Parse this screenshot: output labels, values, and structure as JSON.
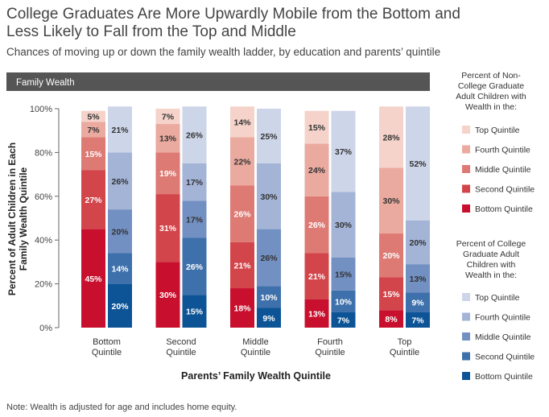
{
  "title_line1": "College Graduates Are More Upwardly Mobile from the Bottom and",
  "title_line2": "Less Likely to Fall from the Top and Middle",
  "subtitle": "Chances of moving up or down the family wealth ladder, by education and parents’ quintile",
  "band_label": "Family Wealth",
  "note": "Note: Wealth is adjusted for age and includes home equity.",
  "legend": {
    "noncollege_heading": [
      "Percent of Non-",
      "College Graduate",
      "Adult Children with",
      "Wealth in the:"
    ],
    "college_heading": [
      "Percent of College",
      "Graduate Adult",
      "Children with",
      "Wealth in the:"
    ],
    "items": [
      "Top Quintile",
      "Fourth Quintile",
      "Middle Quintile",
      "Second Quintile",
      "Bottom Quintile"
    ]
  },
  "colors": {
    "noncollege": [
      "#c8102e",
      "#d2454a",
      "#de7a74",
      "#eaaa9f",
      "#f5d3ca"
    ],
    "college": [
      "#0d5496",
      "#3e70ab",
      "#7390c2",
      "#a3b4d7",
      "#cdd5e8"
    ],
    "band": "#555555"
  },
  "chart_data": {
    "type": "bar",
    "stacked": true,
    "categories": [
      [
        "Bottom",
        "Quintile"
      ],
      [
        "Second",
        "Quintile"
      ],
      [
        "Middle",
        "Quintile"
      ],
      [
        "Fourth",
        "Quintile"
      ],
      [
        "Top",
        "Quintile"
      ]
    ],
    "stack_order": [
      "Bottom Quintile",
      "Second Quintile",
      "Middle Quintile",
      "Fourth Quintile",
      "Top Quintile"
    ],
    "series": [
      {
        "name": "Percent of Non-College Graduate Adult Children",
        "values": [
          [
            45,
            27,
            15,
            7,
            5
          ],
          [
            30,
            31,
            19,
            13,
            7
          ],
          [
            18,
            21,
            26,
            22,
            14
          ],
          [
            13,
            21,
            26,
            24,
            15
          ],
          [
            8,
            15,
            20,
            30,
            28
          ]
        ],
        "labels": [
          [
            "45%",
            "27%",
            "15%",
            "7%",
            "5%"
          ],
          [
            "30%",
            "31%",
            "19%",
            "13%",
            "7%"
          ],
          [
            "18%",
            "21%",
            "26%",
            "22%",
            "14%"
          ],
          [
            "13%",
            "21%",
            "26%",
            "24%",
            "15%"
          ],
          [
            "8%",
            "15%",
            "20%",
            "30%",
            "28%"
          ]
        ]
      },
      {
        "name": "Percent of College Graduate Adult Children",
        "values": [
          [
            20,
            14,
            20,
            26,
            21
          ],
          [
            15,
            26,
            17,
            17,
            26
          ],
          [
            9,
            10,
            26,
            30,
            25
          ],
          [
            7,
            10,
            15,
            30,
            37
          ],
          [
            7,
            9,
            13,
            20,
            52
          ]
        ],
        "labels": [
          [
            "20%",
            "14%",
            "20%",
            "26%",
            "21%"
          ],
          [
            "15%",
            "26%",
            "17%",
            "17%",
            "26%"
          ],
          [
            "9%",
            "10%",
            "26%",
            "30%",
            "25%"
          ],
          [
            "7%",
            "10%",
            "15%",
            "30%",
            "37%"
          ],
          [
            "7%",
            "9%",
            "13%",
            "20%",
            "52%"
          ]
        ]
      }
    ],
    "xlabel": "Parents’ Family Wealth Quintile",
    "ylabel_lines": [
      "Percent of Adult Children in Each",
      "Family Wealth Quintile"
    ],
    "ylim": [
      0,
      100
    ],
    "yticks": [
      0,
      20,
      40,
      60,
      80,
      100
    ],
    "ytick_labels": [
      "0%",
      "20%",
      "40%",
      "60%",
      "80%",
      "100%"
    ],
    "grid": false,
    "legend_position": "right"
  }
}
